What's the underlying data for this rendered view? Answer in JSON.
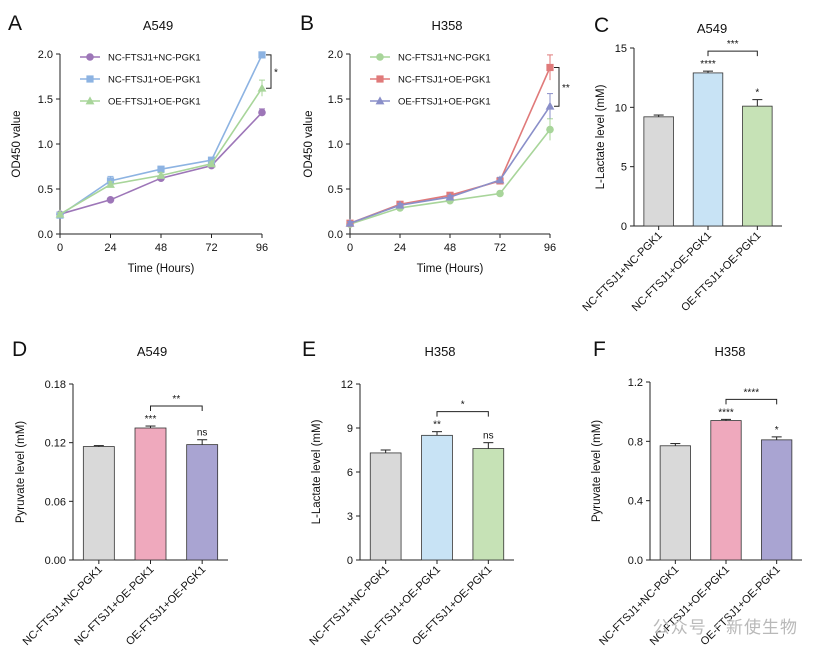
{
  "watermark": "公众号 · 新使生物",
  "colors": {
    "purple": "#9d76b8",
    "blue": "#8db3e2",
    "green": "#a8d59a",
    "red": "#e07a7a",
    "slate": "#8a8fc9",
    "bar_gray": "#d9d9d9",
    "bar_lightblue": "#c8e3f5",
    "bar_green": "#c6e2b6",
    "bar_pink": "#efa9bd",
    "bar_lavender": "#a9a4d2"
  },
  "chart_data": [
    {
      "panel": "A",
      "type": "line",
      "title": "A549",
      "xlabel": "Time (Hours)",
      "ylabel": "OD450 value",
      "x": [
        0,
        24,
        48,
        72,
        96
      ],
      "xlim": [
        0,
        96
      ],
      "ylim": [
        0,
        2.0
      ],
      "yticks": [
        "0.0",
        "0.5",
        "1.0",
        "1.5",
        "2.0"
      ],
      "legend_position": "top-left",
      "series": [
        {
          "name": "NC-FTSJ1+NC-PGK1",
          "values": [
            0.22,
            0.38,
            0.62,
            0.76,
            1.35
          ],
          "errors": [
            0.02,
            0.02,
            0.02,
            0.02,
            0.04
          ],
          "marker": "circle",
          "color": "#9d76b8"
        },
        {
          "name": "NC-FTSJ1+OE-PGK1",
          "values": [
            0.21,
            0.59,
            0.72,
            0.82,
            1.99
          ],
          "errors": [
            0.02,
            0.05,
            0.03,
            0.03,
            0.03
          ],
          "marker": "square",
          "color": "#8db3e2"
        },
        {
          "name": "OE-FTSJ1+OE-PGK1",
          "values": [
            0.22,
            0.55,
            0.65,
            0.78,
            1.62
          ],
          "errors": [
            0.02,
            0.03,
            0.03,
            0.02,
            0.09
          ],
          "marker": "triangle",
          "color": "#a8d59a"
        }
      ],
      "annotations": [
        {
          "text": "*",
          "between": [
            1,
            2
          ]
        }
      ]
    },
    {
      "panel": "B",
      "type": "line",
      "title": "H358",
      "xlabel": "Time (Hours)",
      "ylabel": "OD450 value",
      "x": [
        0,
        24,
        48,
        72,
        96
      ],
      "xlim": [
        0,
        96
      ],
      "ylim": [
        0,
        2.0
      ],
      "yticks": [
        "0.0",
        "0.5",
        "1.0",
        "1.5",
        "2.0"
      ],
      "legend_position": "top-left",
      "series": [
        {
          "name": "NC-FTSJ1+NC-PGK1",
          "values": [
            0.11,
            0.29,
            0.37,
            0.45,
            1.16
          ],
          "errors": [
            0.02,
            0.02,
            0.02,
            0.02,
            0.12
          ],
          "marker": "circle",
          "color": "#a8d59a"
        },
        {
          "name": "NC-FTSJ1+OE-PGK1",
          "values": [
            0.12,
            0.33,
            0.43,
            0.59,
            1.85
          ],
          "errors": [
            0.02,
            0.02,
            0.02,
            0.03,
            0.14
          ],
          "marker": "square",
          "color": "#e07a7a"
        },
        {
          "name": "OE-FTSJ1+OE-PGK1",
          "values": [
            0.12,
            0.32,
            0.41,
            0.6,
            1.42
          ],
          "errors": [
            0.02,
            0.02,
            0.02,
            0.03,
            0.14
          ],
          "marker": "triangle",
          "color": "#8a8fc9"
        }
      ],
      "annotations": [
        {
          "text": "**",
          "between": [
            1,
            2
          ]
        }
      ]
    },
    {
      "panel": "C",
      "type": "bar",
      "title": "A549",
      "xlabel": "",
      "ylabel": "L-Lactate level (mM)",
      "ylim": [
        0,
        15
      ],
      "yticks": [
        "0",
        "5",
        "10",
        "15"
      ],
      "categories": [
        "NC-FTSJ1+NC-PGK1",
        "NC-FTSJ1+OE-PGK1",
        "OE-FTSJ1+OE-PGK1"
      ],
      "values": [
        9.2,
        12.9,
        10.1
      ],
      "errors": [
        0.15,
        0.15,
        0.55
      ],
      "colors": [
        "#d9d9d9",
        "#c8e3f5",
        "#c6e2b6"
      ],
      "bar_labels": [
        "",
        "****",
        "*"
      ],
      "bracket": {
        "between": [
          1,
          2
        ],
        "text": "***"
      }
    },
    {
      "panel": "D",
      "type": "bar",
      "title": "A549",
      "xlabel": "",
      "ylabel": "Pyruvate level (mM)",
      "ylim": [
        0,
        0.18
      ],
      "yticks": [
        "0.00",
        "0.06",
        "0.12",
        "0.18"
      ],
      "categories": [
        "NC-FTSJ1+NC-PGK1",
        "NC-FTSJ1+OE-PGK1",
        "OE-FTSJ1+OE-PGK1"
      ],
      "values": [
        0.116,
        0.135,
        0.118
      ],
      "errors": [
        0.001,
        0.002,
        0.005
      ],
      "colors": [
        "#d9d9d9",
        "#efa9bd",
        "#a9a4d2"
      ],
      "bar_labels": [
        "",
        "***",
        "ns"
      ],
      "bracket": {
        "between": [
          1,
          2
        ],
        "text": "**"
      }
    },
    {
      "panel": "E",
      "type": "bar",
      "title": "H358",
      "xlabel": "",
      "ylabel": "L-Lactate level (mM)",
      "ylim": [
        0,
        12
      ],
      "yticks": [
        "0",
        "3",
        "6",
        "9",
        "12"
      ],
      "categories": [
        "NC-FTSJ1+NC-PGK1",
        "NC-FTSJ1+OE-PGK1",
        "OE-FTSJ1+OE-PGK1"
      ],
      "values": [
        7.3,
        8.5,
        7.6
      ],
      "errors": [
        0.2,
        0.25,
        0.4
      ],
      "colors": [
        "#d9d9d9",
        "#c8e3f5",
        "#c6e2b6"
      ],
      "bar_labels": [
        "",
        "**",
        "ns"
      ],
      "bracket": {
        "between": [
          1,
          2
        ],
        "text": "*"
      }
    },
    {
      "panel": "F",
      "type": "bar",
      "title": "H358",
      "xlabel": "",
      "ylabel": "Pyruvate level (mM)",
      "ylim": [
        0,
        1.2
      ],
      "yticks": [
        "0.0",
        "0.4",
        "0.8",
        "1.2"
      ],
      "categories": [
        "NC-FTSJ1+NC-PGK1",
        "NC-FTSJ1+OE-PGK1",
        "OE-FTSJ1+OE-PGK1"
      ],
      "values": [
        0.77,
        0.94,
        0.81
      ],
      "errors": [
        0.015,
        0.008,
        0.02
      ],
      "colors": [
        "#d9d9d9",
        "#efa9bd",
        "#a9a4d2"
      ],
      "bar_labels": [
        "",
        "****",
        "*"
      ],
      "bracket": {
        "between": [
          1,
          2
        ],
        "text": "****"
      }
    }
  ]
}
